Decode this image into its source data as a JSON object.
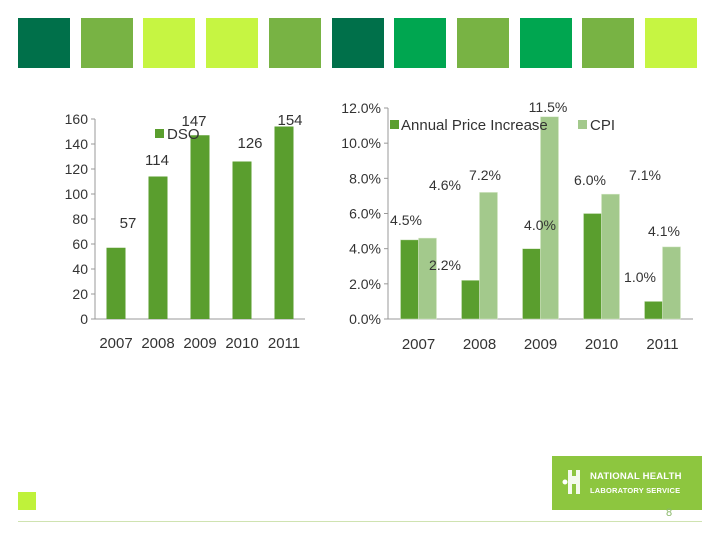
{
  "header_tiles": [
    "#00704a",
    "#78b344",
    "#c6f542",
    "#c6f542",
    "#78b344",
    "#00704a",
    "#00a650",
    "#78b344",
    "#00a650",
    "#78b344",
    "#c6f542"
  ],
  "chart_data": [
    {
      "type": "bar",
      "title": "",
      "categories": [
        "2007",
        "2008",
        "2009",
        "2010",
        "2011"
      ],
      "series": [
        {
          "name": "DSO",
          "values": [
            57,
            114,
            147,
            126,
            154
          ],
          "color": "#5a9e2e"
        }
      ],
      "data_labels": [
        "57",
        "114",
        "147",
        "126",
        "154"
      ],
      "y_ticks": [
        "0",
        "20",
        "40",
        "60",
        "80",
        "100",
        "120",
        "140",
        "160"
      ],
      "ylim": [
        0,
        160
      ],
      "legend": "top-center"
    },
    {
      "type": "bar",
      "title": "",
      "categories": [
        "2007",
        "2008",
        "2009",
        "2010",
        "2011"
      ],
      "series": [
        {
          "name": "Annual Price Increase",
          "values": [
            4.5,
            2.2,
            4.0,
            6.0,
            1.0
          ],
          "labels": [
            "4.5%",
            "2.2%",
            "4.0%",
            "6.0%",
            "1.0%"
          ],
          "color": "#5a9e2e"
        },
        {
          "name": "CPI",
          "values": [
            4.6,
            7.2,
            11.5,
            7.1,
            4.1
          ],
          "labels": [
            "4.6%",
            "7.2%",
            "11.5%",
            "7.1%",
            "4.1%"
          ],
          "color": "#a3c98c"
        }
      ],
      "y_ticks": [
        "0.0%",
        "2.0%",
        "4.0%",
        "6.0%",
        "8.0%",
        "10.0%",
        "12.0%"
      ],
      "ylim": [
        0,
        12
      ],
      "legend": "top-center"
    }
  ],
  "logo": {
    "line1": "NATIONAL HEALTH",
    "line2": "LABORATORY SERVICE"
  },
  "page_number": "8"
}
